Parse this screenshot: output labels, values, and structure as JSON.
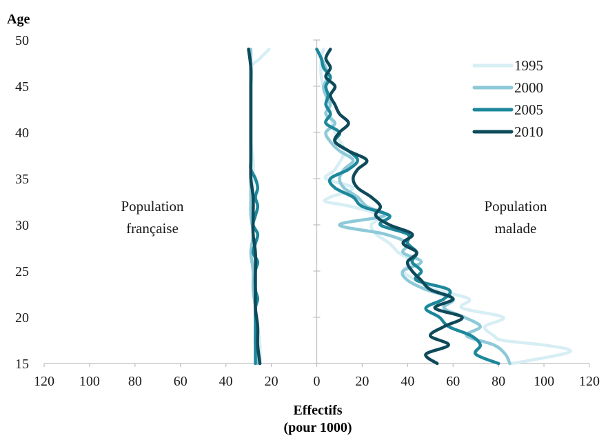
{
  "chart_data": {
    "type": "line",
    "ylabel": "Age",
    "xlabel_line1": "Effectifs",
    "xlabel_line2": "(pour 1000)",
    "xlim": [
      -120,
      120
    ],
    "ylim": [
      15,
      50
    ],
    "x_ticks": [
      -120,
      -100,
      -80,
      -60,
      -40,
      -20,
      0,
      20,
      40,
      60,
      80,
      100,
      120
    ],
    "x_tick_labels": [
      "120",
      "100",
      "80",
      "60",
      "40",
      "20",
      "0",
      "20",
      "40",
      "60",
      "80",
      "100",
      "120"
    ],
    "y_ticks": [
      15,
      20,
      25,
      30,
      35,
      40,
      45,
      50
    ],
    "annotations": {
      "left": [
        "Population",
        "française"
      ],
      "right": [
        "Population",
        "malade"
      ]
    },
    "legend_position": "top-right",
    "series": [
      {
        "name": "1995",
        "color": "#d6eef4",
        "population_francaise": [
          [
            15,
            25
          ],
          [
            17,
            25
          ],
          [
            19,
            26
          ],
          [
            21,
            27
          ],
          [
            23,
            27
          ],
          [
            25,
            27
          ],
          [
            27,
            28
          ],
          [
            29,
            28
          ],
          [
            31,
            28
          ],
          [
            33,
            28
          ],
          [
            35,
            28
          ],
          [
            37,
            28
          ],
          [
            39,
            29
          ],
          [
            41,
            29
          ],
          [
            43,
            29
          ],
          [
            45,
            29
          ],
          [
            47,
            29
          ],
          [
            48,
            25
          ],
          [
            49,
            21
          ]
        ],
        "population_malade": [
          [
            15,
            86
          ],
          [
            16,
            108
          ],
          [
            16.5,
            111
          ],
          [
            17,
            100
          ],
          [
            17.5,
            82
          ],
          [
            18,
            78
          ],
          [
            19,
            74
          ],
          [
            20,
            82
          ],
          [
            21,
            64
          ],
          [
            22,
            67
          ],
          [
            23,
            52
          ],
          [
            24,
            44
          ],
          [
            25,
            38
          ],
          [
            26,
            42
          ],
          [
            27,
            36
          ],
          [
            28,
            32
          ],
          [
            29,
            26
          ],
          [
            30,
            24
          ],
          [
            31,
            28
          ],
          [
            32,
            15
          ],
          [
            32.5,
            4
          ],
          [
            33,
            6
          ],
          [
            34,
            16
          ],
          [
            35,
            4
          ],
          [
            36,
            8
          ],
          [
            38,
            12
          ],
          [
            40,
            8
          ],
          [
            42,
            6
          ],
          [
            44,
            4
          ],
          [
            46,
            2
          ],
          [
            48,
            2
          ],
          [
            49,
            3
          ]
        ]
      },
      {
        "name": "2000",
        "color": "#8dc9d8",
        "population_francaise": [
          [
            15,
            26
          ],
          [
            17,
            27
          ],
          [
            19,
            27
          ],
          [
            21,
            27
          ],
          [
            23,
            28
          ],
          [
            25,
            28
          ],
          [
            27,
            29
          ],
          [
            29,
            28
          ],
          [
            31,
            29
          ],
          [
            33,
            29
          ],
          [
            35,
            29
          ],
          [
            37,
            29
          ],
          [
            39,
            29
          ],
          [
            41,
            29
          ],
          [
            43,
            29
          ],
          [
            45,
            29
          ],
          [
            47,
            29
          ],
          [
            49,
            29
          ]
        ],
        "population_malade": [
          [
            15,
            85
          ],
          [
            16,
            83
          ],
          [
            17,
            78
          ],
          [
            18,
            66
          ],
          [
            19,
            72
          ],
          [
            20,
            65
          ],
          [
            21,
            56
          ],
          [
            22,
            60
          ],
          [
            23,
            48
          ],
          [
            24,
            40
          ],
          [
            25,
            38
          ],
          [
            26,
            46
          ],
          [
            27,
            38
          ],
          [
            28,
            40
          ],
          [
            29,
            30
          ],
          [
            30,
            10
          ],
          [
            31,
            30
          ],
          [
            32,
            22
          ],
          [
            33,
            18
          ],
          [
            34,
            12
          ],
          [
            35,
            10
          ],
          [
            36,
            12
          ],
          [
            37,
            16
          ],
          [
            38,
            10
          ],
          [
            39,
            6
          ],
          [
            40,
            4
          ],
          [
            41,
            8
          ],
          [
            42,
            4
          ],
          [
            43,
            6
          ],
          [
            44,
            4
          ],
          [
            45,
            3
          ],
          [
            46,
            5
          ],
          [
            47,
            4
          ],
          [
            48,
            2
          ],
          [
            49,
            0
          ]
        ]
      },
      {
        "name": "2005",
        "color": "#1d879b",
        "population_francaise": [
          [
            15,
            27
          ],
          [
            17,
            27
          ],
          [
            19,
            27
          ],
          [
            21,
            27
          ],
          [
            22,
            26
          ],
          [
            23,
            27
          ],
          [
            25,
            27
          ],
          [
            26,
            26
          ],
          [
            27,
            28
          ],
          [
            28,
            27
          ],
          [
            29,
            26
          ],
          [
            30,
            28
          ],
          [
            31,
            27
          ],
          [
            32,
            26
          ],
          [
            33,
            27
          ],
          [
            34,
            26
          ],
          [
            35,
            27
          ],
          [
            36,
            29
          ],
          [
            37,
            29
          ],
          [
            39,
            29
          ],
          [
            41,
            29
          ],
          [
            43,
            29
          ],
          [
            45,
            29
          ],
          [
            47,
            29
          ],
          [
            49,
            30
          ]
        ],
        "population_malade": [
          [
            15,
            80
          ],
          [
            16,
            70
          ],
          [
            17,
            72
          ],
          [
            18,
            68
          ],
          [
            19,
            58
          ],
          [
            20,
            54
          ],
          [
            21,
            48
          ],
          [
            22,
            56
          ],
          [
            23,
            58
          ],
          [
            24,
            44
          ],
          [
            25,
            46
          ],
          [
            26,
            42
          ],
          [
            27,
            44
          ],
          [
            28,
            40
          ],
          [
            29,
            40
          ],
          [
            30,
            28
          ],
          [
            31,
            32
          ],
          [
            32,
            20
          ],
          [
            33,
            16
          ],
          [
            34,
            8
          ],
          [
            35,
            6
          ],
          [
            36,
            14
          ],
          [
            37,
            18
          ],
          [
            38,
            14
          ],
          [
            39,
            8
          ],
          [
            40,
            10
          ],
          [
            41,
            4
          ],
          [
            42,
            6
          ],
          [
            43,
            4
          ],
          [
            44,
            5
          ],
          [
            45,
            4
          ],
          [
            46,
            6
          ],
          [
            47,
            3
          ],
          [
            48,
            2
          ],
          [
            49,
            0
          ]
        ]
      },
      {
        "name": "2010",
        "color": "#0e4a5a",
        "population_francaise": [
          [
            15,
            25
          ],
          [
            17,
            26
          ],
          [
            19,
            26
          ],
          [
            21,
            27
          ],
          [
            23,
            27
          ],
          [
            25,
            27
          ],
          [
            27,
            27
          ],
          [
            29,
            28
          ],
          [
            31,
            28
          ],
          [
            33,
            28
          ],
          [
            35,
            29
          ],
          [
            37,
            29
          ],
          [
            39,
            29
          ],
          [
            41,
            29
          ],
          [
            43,
            29
          ],
          [
            45,
            29
          ],
          [
            47,
            29
          ],
          [
            49,
            30
          ]
        ],
        "population_malade": [
          [
            15,
            53
          ],
          [
            16,
            48
          ],
          [
            17,
            58
          ],
          [
            18,
            50
          ],
          [
            19,
            56
          ],
          [
            20,
            64
          ],
          [
            21,
            52
          ],
          [
            22,
            60
          ],
          [
            23,
            50
          ],
          [
            24,
            46
          ],
          [
            25,
            42
          ],
          [
            26,
            40
          ],
          [
            27,
            44
          ],
          [
            28,
            38
          ],
          [
            29,
            42
          ],
          [
            30,
            32
          ],
          [
            31,
            26
          ],
          [
            32,
            28
          ],
          [
            33,
            24
          ],
          [
            34,
            18
          ],
          [
            35,
            16
          ],
          [
            36,
            18
          ],
          [
            37,
            22
          ],
          [
            38,
            14
          ],
          [
            39,
            8
          ],
          [
            40,
            10
          ],
          [
            41,
            14
          ],
          [
            42,
            10
          ],
          [
            43,
            8
          ],
          [
            44,
            6
          ],
          [
            45,
            8
          ],
          [
            46,
            4
          ],
          [
            47,
            6
          ],
          [
            48,
            4
          ],
          [
            49,
            6
          ]
        ]
      }
    ]
  }
}
